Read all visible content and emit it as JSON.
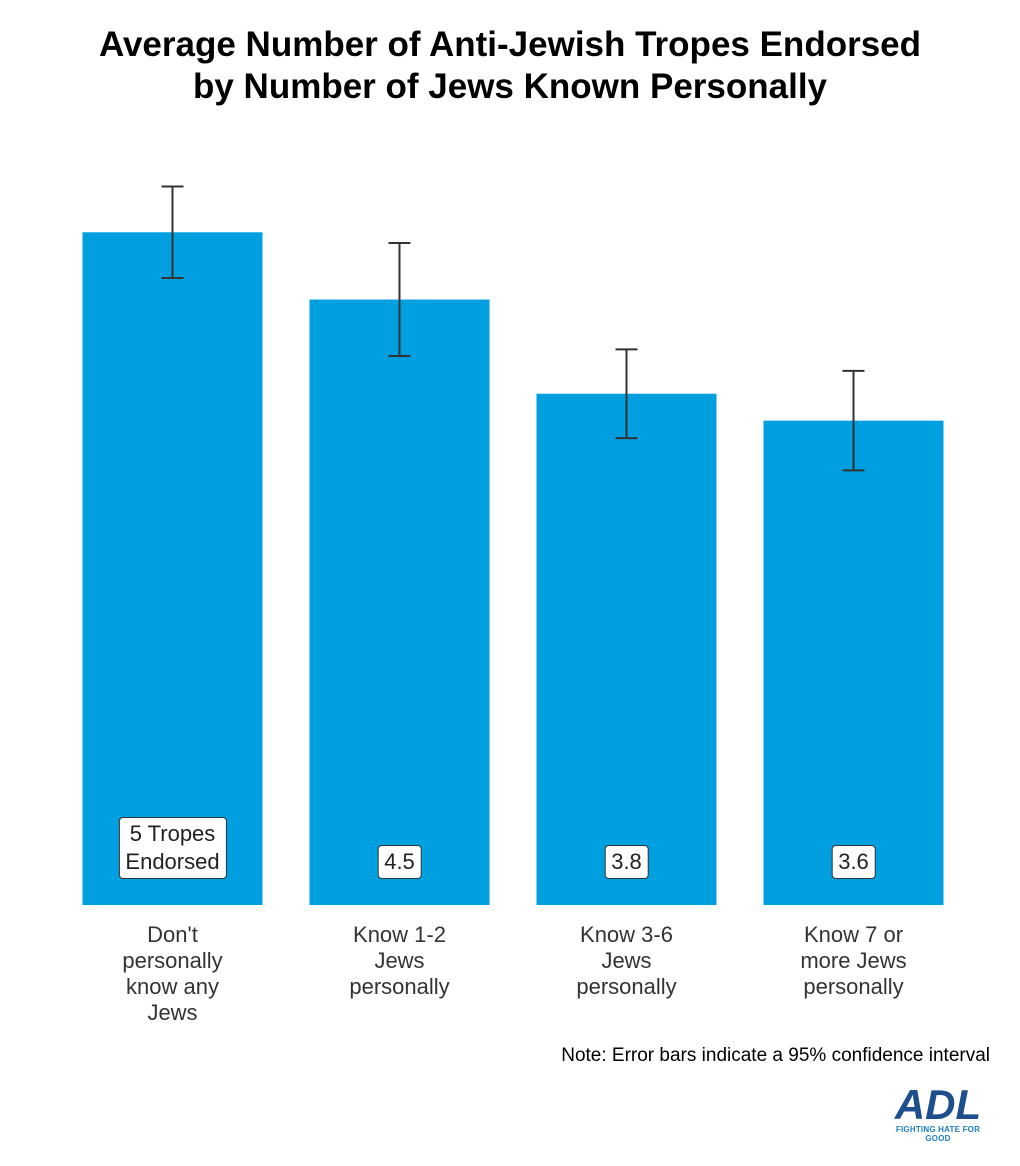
{
  "chart_data": {
    "type": "bar",
    "title": "Average Number of Anti-Jewish Tropes Endorsed",
    "subtitle": "by Number of Jews Known Personally",
    "categories": [
      "Don't personally know any Jews",
      "Know 1-2 Jews personally",
      "Know 3-6 Jews personally",
      "Know 7 or more Jews personally"
    ],
    "values": [
      5,
      4.5,
      3.8,
      3.6
    ],
    "value_labels": [
      "5 Tropes Endorsed",
      "4.5",
      "3.8",
      "3.6"
    ],
    "errors": [
      0.34,
      0.42,
      0.33,
      0.37
    ],
    "color": "#009fdf",
    "ylim": [
      0,
      5.5
    ],
    "note": "Note: Error bars indicate a 95% confidence interval"
  },
  "logo": {
    "text": "ADL",
    "tagline": "FIGHTING HATE FOR GOOD"
  }
}
